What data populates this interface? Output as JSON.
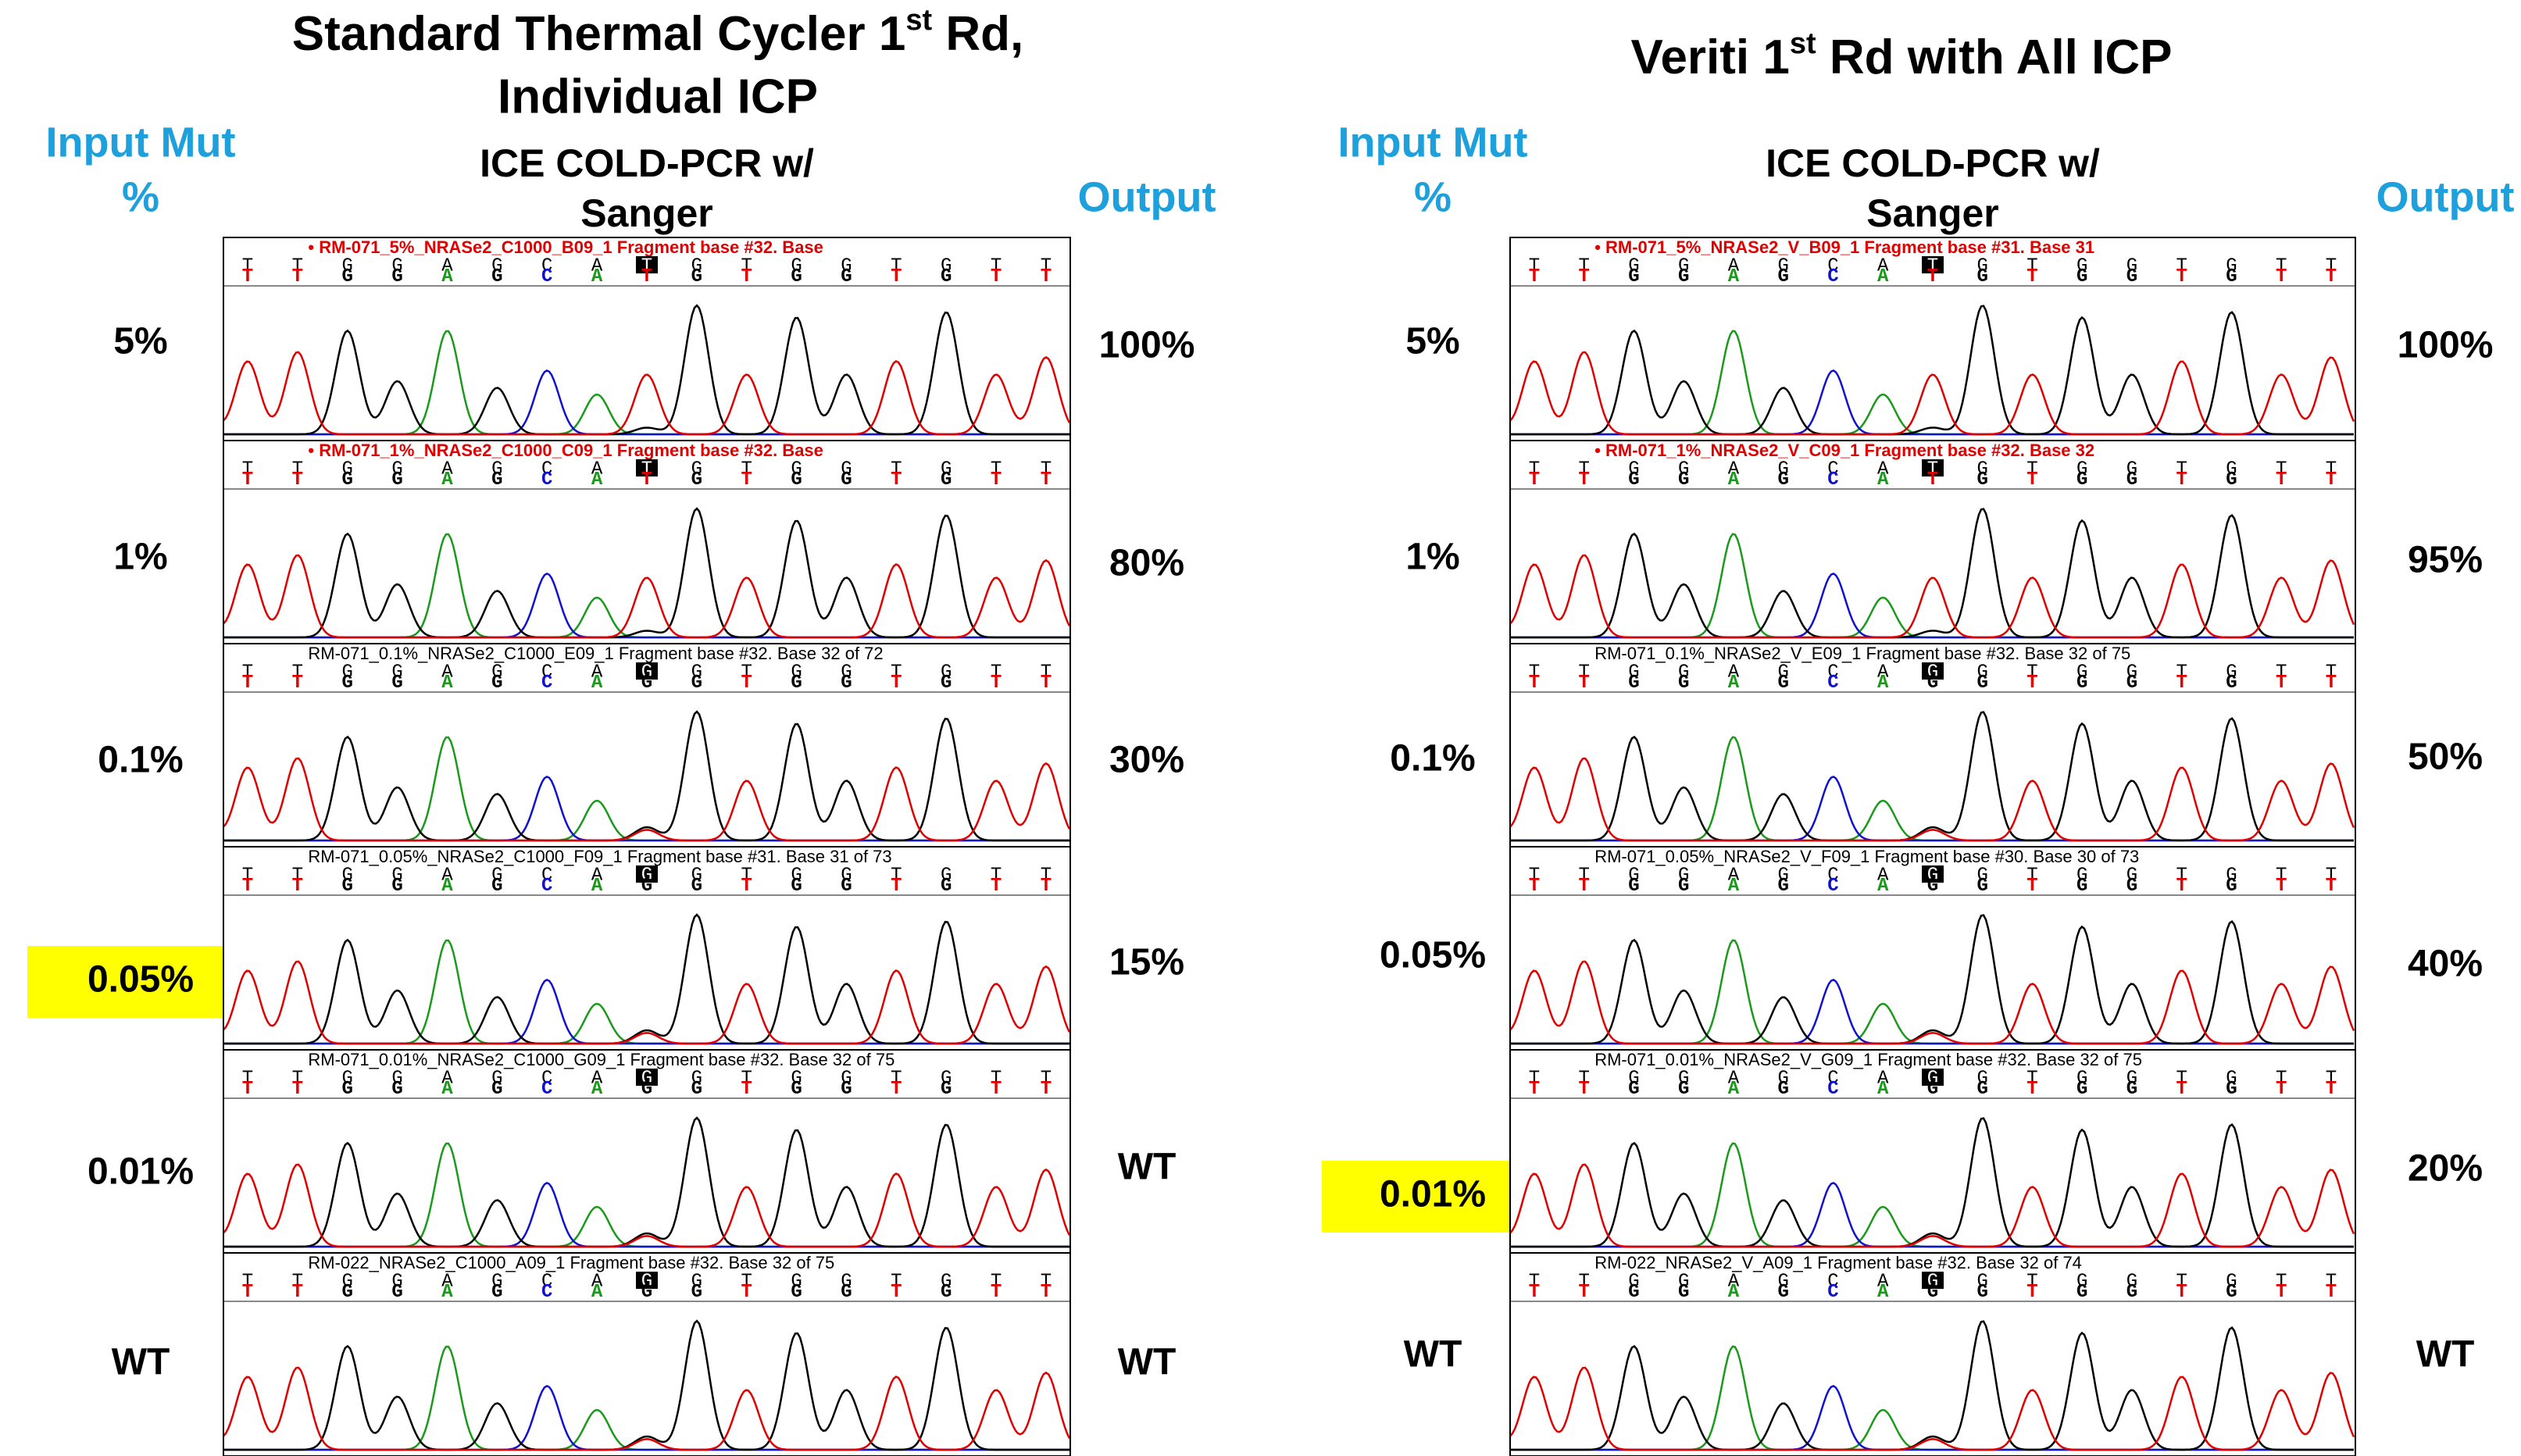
{
  "panels": [
    {
      "title": {
        "main": "Standard Thermal Cycler 1",
        "sup": "st",
        "rest": " Rd,",
        "line2": "Individual ICP"
      },
      "input_label": "Input  Mut",
      "input_unit": "%",
      "method": "ICE COLD-PCR w/",
      "method2": "Sanger",
      "output_label": "Output",
      "rows": [
        {
          "input": "5%",
          "output": "100%",
          "trace": {
            "header": "• RM-071_5%_NRASe2_C1000_B09_1 Fragment base #32. Base",
            "header_color": "#e00000",
            "bases": [
              "T",
              "T",
              "G",
              "G",
              "A",
              "G",
              "C",
              "A",
              "T",
              "G",
              "T",
              "G",
              "G",
              "T",
              "G",
              "T",
              "T"
            ]
          }
        },
        {
          "input": "1%",
          "output": "80%",
          "trace": {
            "header": "• RM-071_1%_NRASe2_C1000_C09_1 Fragment base #32. Base",
            "header_color": "#e00000",
            "bases": [
              "T",
              "T",
              "G",
              "G",
              "A",
              "G",
              "C",
              "A",
              "T",
              "G",
              "T",
              "G",
              "G",
              "T",
              "G",
              "T",
              "T"
            ]
          }
        },
        {
          "input": "0.1%",
          "output": "30%",
          "trace": {
            "header": "RM-071_0.1%_NRASe2_C1000_E09_1 Fragment base #32. Base 32 of 72",
            "header_color": "#000000",
            "bases": [
              "T",
              "T",
              "G",
              "G",
              "A",
              "G",
              "C",
              "A",
              "G",
              "G",
              "T",
              "G",
              "G",
              "T",
              "G",
              "T",
              "T"
            ]
          }
        },
        {
          "input": "0.05%",
          "output": "15%",
          "highlight": true,
          "trace": {
            "header": "RM-071_0.05%_NRASe2_C1000_F09_1 Fragment base #31. Base 31 of 73",
            "header_color": "#000000",
            "bases": [
              "T",
              "T",
              "G",
              "G",
              "A",
              "G",
              "C",
              "A",
              "G",
              "G",
              "T",
              "G",
              "G",
              "T",
              "G",
              "T",
              "T"
            ]
          }
        },
        {
          "input": "0.01%",
          "output": "WT",
          "trace": {
            "header": "RM-071_0.01%_NRASe2_C1000_G09_1 Fragment base #32. Base 32 of 75",
            "header_color": "#000000",
            "bases": [
              "T",
              "T",
              "G",
              "G",
              "A",
              "G",
              "C",
              "A",
              "G",
              "G",
              "T",
              "G",
              "G",
              "T",
              "G",
              "T",
              "T"
            ]
          }
        },
        {
          "input": "WT",
          "output": "WT",
          "trace": {
            "header": "RM-022_NRASe2_C1000_A09_1 Fragment base #32. Base 32 of 75",
            "header_color": "#000000",
            "bases": [
              "T",
              "T",
              "G",
              "G",
              "A",
              "G",
              "C",
              "A",
              "G",
              "G",
              "T",
              "G",
              "G",
              "T",
              "G",
              "T",
              "T"
            ]
          }
        }
      ]
    },
    {
      "title": {
        "main": "Veriti 1",
        "sup": "st",
        "rest": " Rd with All ICP"
      },
      "input_label": "Input  Mut",
      "input_unit": "%",
      "method": "ICE COLD-PCR w/",
      "method2": "Sanger",
      "output_label": "Output",
      "rows": [
        {
          "input": "5%",
          "output": "100%",
          "trace": {
            "header": "• RM-071_5%_NRASe2_V_B09_1 Fragment base #31. Base 31",
            "header_color": "#e00000",
            "bases": [
              "T",
              "T",
              "G",
              "G",
              "A",
              "G",
              "C",
              "A",
              "T",
              "G",
              "T",
              "G",
              "G",
              "T",
              "G",
              "T",
              "T"
            ]
          }
        },
        {
          "input": "1%",
          "output": "95%",
          "trace": {
            "header": "• RM-071_1%_NRASe2_V_C09_1 Fragment base #32. Base 32",
            "header_color": "#e00000",
            "bases": [
              "T",
              "T",
              "G",
              "G",
              "A",
              "G",
              "C",
              "A",
              "T",
              "G",
              "T",
              "G",
              "G",
              "T",
              "G",
              "T",
              "T"
            ]
          }
        },
        {
          "input": "0.1%",
          "output": "50%",
          "trace": {
            "header": "RM-071_0.1%_NRASe2_V_E09_1 Fragment base #32. Base 32 of 75",
            "header_color": "#000000",
            "bases": [
              "T",
              "T",
              "G",
              "G",
              "A",
              "G",
              "C",
              "A",
              "G",
              "G",
              "T",
              "G",
              "G",
              "T",
              "G",
              "T",
              "T"
            ]
          }
        },
        {
          "input": "0.05%",
          "output": "40%",
          "trace": {
            "header": "RM-071_0.05%_NRASe2_V_F09_1 Fragment base #30. Base 30 of 73",
            "header_color": "#000000",
            "bases": [
              "T",
              "T",
              "G",
              "G",
              "A",
              "G",
              "C",
              "A",
              "G",
              "G",
              "T",
              "G",
              "G",
              "T",
              "G",
              "T",
              "T"
            ]
          }
        },
        {
          "input": "0.01%",
          "output": "20%",
          "highlight": true,
          "trace": {
            "header": "RM-071_0.01%_NRASe2_V_G09_1 Fragment base #32. Base 32 of 75",
            "header_color": "#000000",
            "bases": [
              "T",
              "T",
              "G",
              "G",
              "A",
              "G",
              "C",
              "A",
              "G",
              "G",
              "T",
              "G",
              "G",
              "T",
              "G",
              "T",
              "T"
            ]
          }
        },
        {
          "input": "WT",
          "output": "WT",
          "trace": {
            "header": "RM-022_NRASe2_V_A09_1 Fragment base #32. Base 32 of 74",
            "header_color": "#000000",
            "bases": [
              "T",
              "T",
              "G",
              "G",
              "A",
              "G",
              "C",
              "A",
              "G",
              "G",
              "T",
              "G",
              "G",
              "T",
              "G",
              "T",
              "T"
            ]
          }
        }
      ]
    }
  ]
}
